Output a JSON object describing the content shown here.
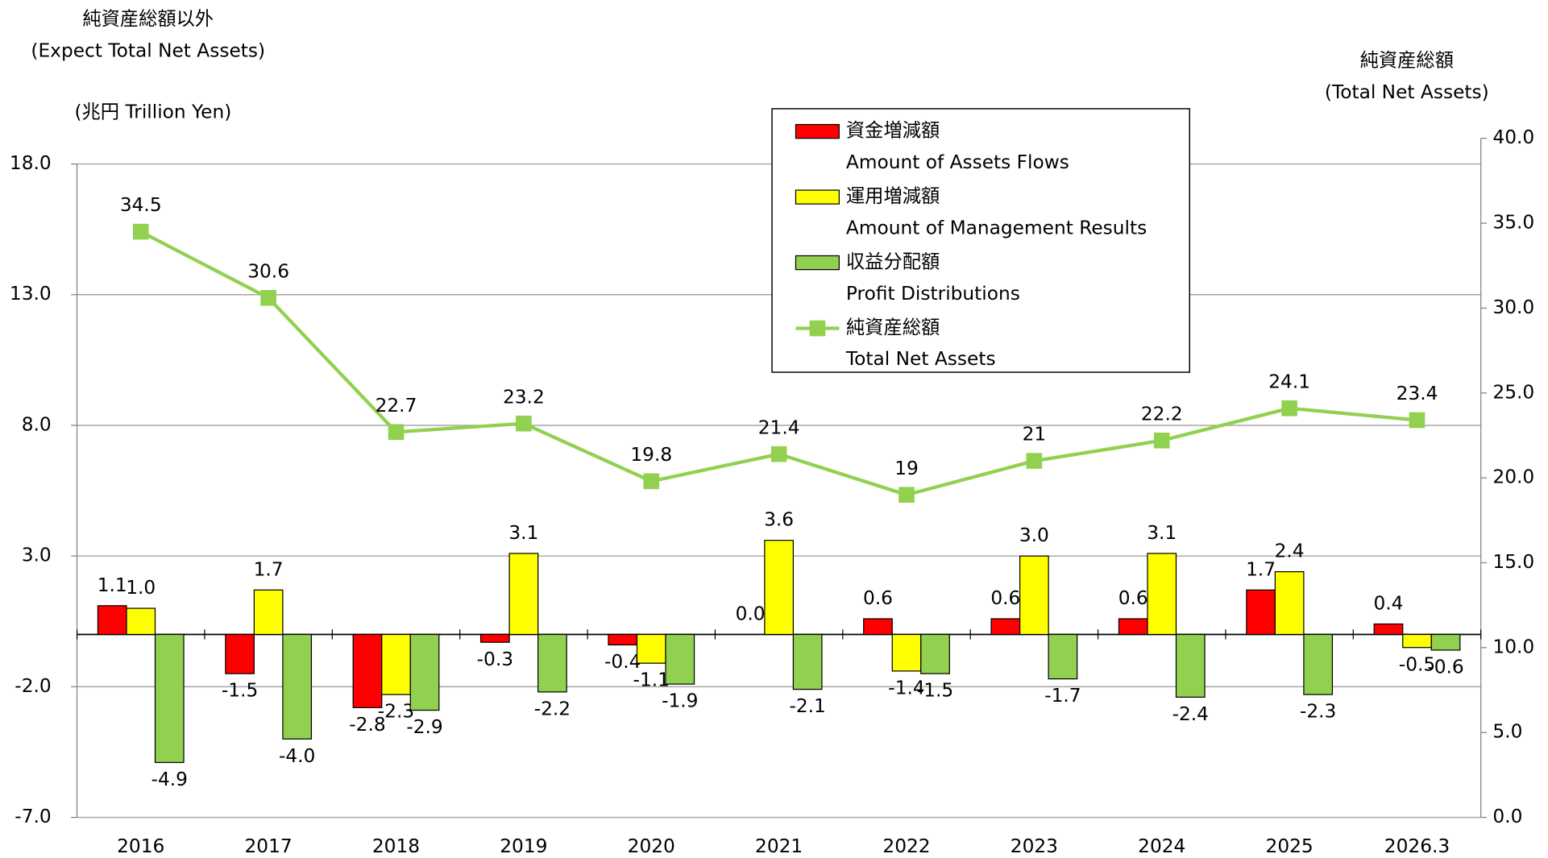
{
  "chart_data": {
    "type": "bar_line",
    "y_title_ja": "純資産総額以外",
    "y_title_en": "(Expect Total Net Assets)",
    "y_unit": "(兆円  Trillion Yen)",
    "y2_title_ja": "純資産総額",
    "y2_title_en": "(Total Net Assets)",
    "categories": [
      "2016",
      "2017",
      "2018",
      "2019",
      "2020",
      "2021",
      "2022",
      "2023",
      "2024",
      "2025",
      "2026.3"
    ],
    "ylim": [
      -7,
      18
    ],
    "yticks": [
      {
        "value": -7,
        "label": "-7.0"
      },
      {
        "value": -2,
        "label": "-2.0"
      },
      {
        "value": 3,
        "label": "3.0"
      },
      {
        "value": 8,
        "label": "8.0"
      },
      {
        "value": 13,
        "label": "13.0"
      },
      {
        "value": 18,
        "label": "18.0"
      }
    ],
    "y2lim": [
      0,
      40
    ],
    "y2ticks": [
      {
        "value": 0,
        "label": "0.0"
      },
      {
        "value": 5,
        "label": "5.0"
      },
      {
        "value": 10,
        "label": "10.0"
      },
      {
        "value": 15,
        "label": "15.0"
      },
      {
        "value": 20,
        "label": "20.0"
      },
      {
        "value": 25,
        "label": "25.0"
      },
      {
        "value": 30,
        "label": "30.0"
      },
      {
        "value": 35,
        "label": "35.0"
      },
      {
        "value": 40,
        "label": "40.0"
      }
    ],
    "grid": true,
    "series": [
      {
        "name": "資金増減額",
        "name_en": "Amount of Assets Flows",
        "kind": "bar",
        "color": "#ff0000",
        "values": [
          1.1,
          -1.5,
          -2.8,
          -0.3,
          -0.4,
          0.0,
          0.6,
          0.6,
          0.6,
          1.7,
          0.4
        ],
        "value_labels": [
          "1.1",
          "-1.5",
          "-2.8",
          "-0.3",
          "-0.4",
          "0.0",
          "0.6",
          "0.6",
          "0.6",
          "1.7",
          "0.4"
        ]
      },
      {
        "name": "運用増減額",
        "name_en": "Amount of Management Results",
        "kind": "bar",
        "color": "#ffff00",
        "values": [
          1.0,
          1.7,
          -2.3,
          3.1,
          -1.1,
          3.6,
          -1.4,
          3.0,
          3.1,
          2.4,
          -0.5
        ],
        "value_labels": [
          "1.0",
          "1.7",
          "-2.3",
          "3.1",
          "-1.1",
          "3.6",
          "-1.4",
          "3.0",
          "3.1",
          "2.4",
          "-0.5"
        ]
      },
      {
        "name": "収益分配額",
        "name_en": "Profit Distributions",
        "kind": "bar",
        "color": "#92d050",
        "values": [
          -4.9,
          -4.0,
          -2.9,
          -2.2,
          -1.9,
          -2.1,
          -1.5,
          -1.7,
          -2.4,
          -2.3,
          -0.6
        ],
        "value_labels": [
          "-4.9",
          "-4.0",
          "-2.9",
          "-2.2",
          "-1.9",
          "-2.1",
          "-1.5",
          "-1.7",
          "-2.4",
          "-2.3",
          "-0.6"
        ]
      },
      {
        "name": "純資産総額",
        "name_en": "Total Net Assets",
        "kind": "line",
        "axis": "y2",
        "color": "#92d050",
        "values": [
          34.5,
          30.6,
          22.7,
          23.2,
          19.8,
          21.4,
          19.0,
          21.0,
          22.2,
          24.1,
          23.4
        ]
      }
    ]
  }
}
